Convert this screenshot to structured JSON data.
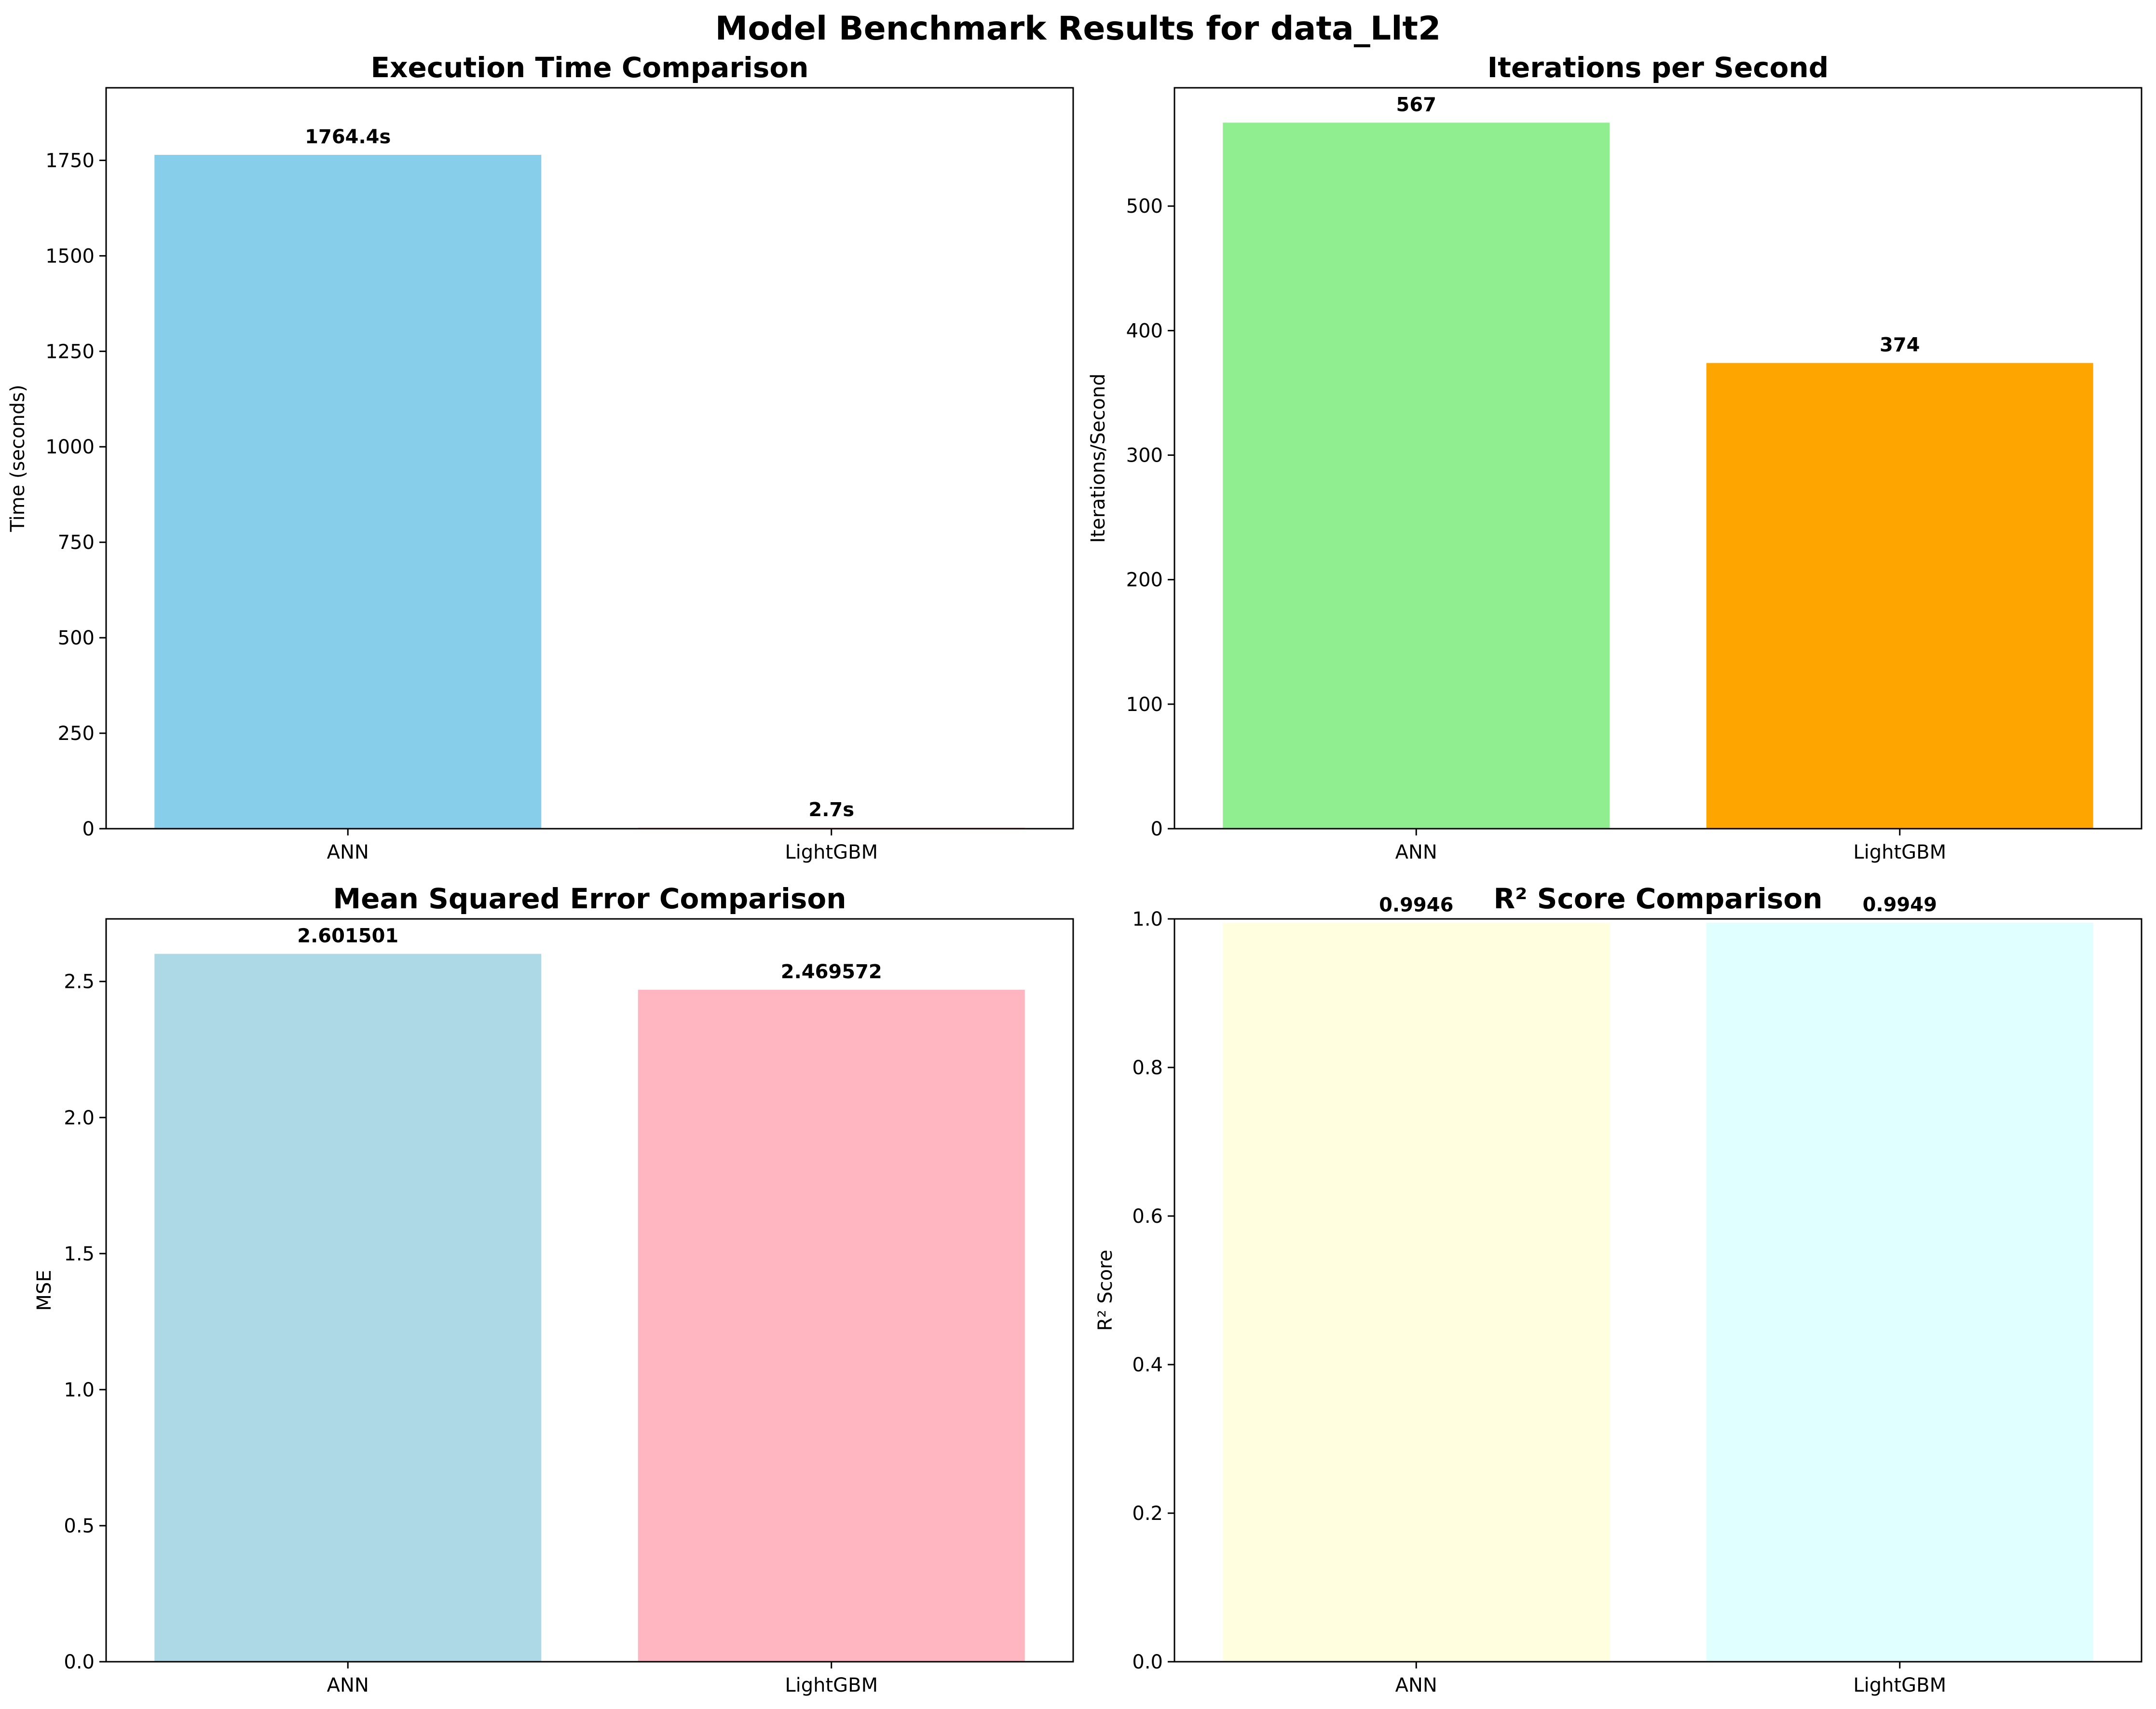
{
  "figure": {
    "suptitle": "Model Benchmark Results for data_Llt2"
  },
  "chart_data": [
    {
      "type": "bar",
      "title": "Execution Time Comparison",
      "xlabel": "",
      "ylabel": "Time (seconds)",
      "categories": [
        "ANN",
        "LightGBM"
      ],
      "values": [
        1764.4,
        2.7
      ],
      "value_labels": [
        "1764.4s",
        "2.7s"
      ],
      "colors": [
        "#87ceeb",
        "#ffb6c1"
      ],
      "ylim": [
        0,
        1940
      ],
      "yticks": [
        0,
        250,
        500,
        750,
        1000,
        1250,
        1500,
        1750
      ],
      "ytick_labels": [
        "0",
        "250",
        "500",
        "750",
        "1000",
        "1250",
        "1500",
        "1750"
      ],
      "grid": false
    },
    {
      "type": "bar",
      "title": "Iterations per Second",
      "xlabel": "",
      "ylabel": "Iterations/Second",
      "categories": [
        "ANN",
        "LightGBM"
      ],
      "values": [
        567,
        374
      ],
      "value_labels": [
        "567",
        "374"
      ],
      "colors": [
        "#90ee90",
        "#ffa500"
      ],
      "ylim": [
        0,
        595
      ],
      "yticks": [
        0,
        100,
        200,
        300,
        400,
        500
      ],
      "ytick_labels": [
        "0",
        "100",
        "200",
        "300",
        "400",
        "500"
      ],
      "grid": false
    },
    {
      "type": "bar",
      "title": "Mean Squared Error Comparison",
      "xlabel": "",
      "ylabel": "MSE",
      "categories": [
        "ANN",
        "LightGBM"
      ],
      "values": [
        2.601501,
        2.469572
      ],
      "value_labels": [
        "2.601501",
        "2.469572"
      ],
      "colors": [
        "#add8e6",
        "#ffb6c1"
      ],
      "ylim": [
        0,
        2.73
      ],
      "yticks": [
        0,
        0.5,
        1.0,
        1.5,
        2.0,
        2.5
      ],
      "ytick_labels": [
        "0.0",
        "0.5",
        "1.0",
        "1.5",
        "2.0",
        "2.5"
      ],
      "grid": false
    },
    {
      "type": "bar",
      "title": "R² Score Comparison",
      "xlabel": "",
      "ylabel": "R² Score",
      "categories": [
        "ANN",
        "LightGBM"
      ],
      "values": [
        0.9946,
        0.9949
      ],
      "value_labels": [
        "0.9946",
        "0.9949"
      ],
      "colors": [
        "#ffffe0",
        "#e0ffff"
      ],
      "ylim": [
        0,
        1.0
      ],
      "yticks": [
        0,
        0.2,
        0.4,
        0.6,
        0.8,
        1.0
      ],
      "ytick_labels": [
        "0.0",
        "0.2",
        "0.4",
        "0.6",
        "0.8",
        "1.0"
      ],
      "grid": false
    }
  ]
}
